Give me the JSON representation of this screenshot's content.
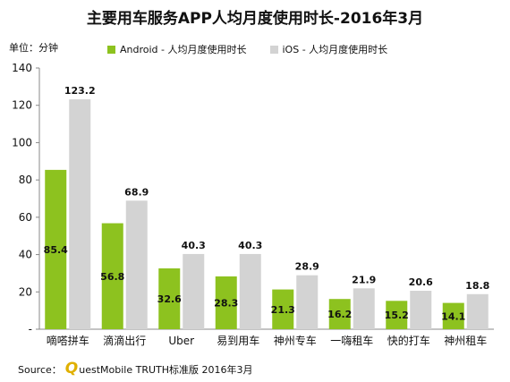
{
  "colors": {
    "android": "#8dc21f",
    "ios": "#d3d3d3"
  },
  "source": {
    "label": "Source：",
    "logo_letter": "Q",
    "text": "uestMobile TRUTH标准版 2016年3月"
  },
  "chart_data": {
    "type": "bar",
    "title": "主要用车服务APP人均月度使用时长-2016年3月",
    "unit_label": "单位：分钟",
    "ylim": [
      0,
      140
    ],
    "yticks": [
      "-",
      "20",
      "40",
      "60",
      "80",
      "100",
      "120",
      "140"
    ],
    "categories": [
      "嘀嗒拼车",
      "滴滴出行",
      "Uber",
      "易到用车",
      "神州专车",
      "一嗨租车",
      "快的打车",
      "神州租车"
    ],
    "series": [
      {
        "name": "Android - 人均月度使用时长",
        "values": [
          85.4,
          56.8,
          32.6,
          28.3,
          21.3,
          16.2,
          15.2,
          14.1
        ]
      },
      {
        "name": "iOS - 人均月度使用时长",
        "values": [
          123.2,
          68.9,
          40.3,
          40.3,
          28.9,
          21.9,
          20.6,
          18.8
        ]
      }
    ],
    "grid": false,
    "legend": "top"
  }
}
